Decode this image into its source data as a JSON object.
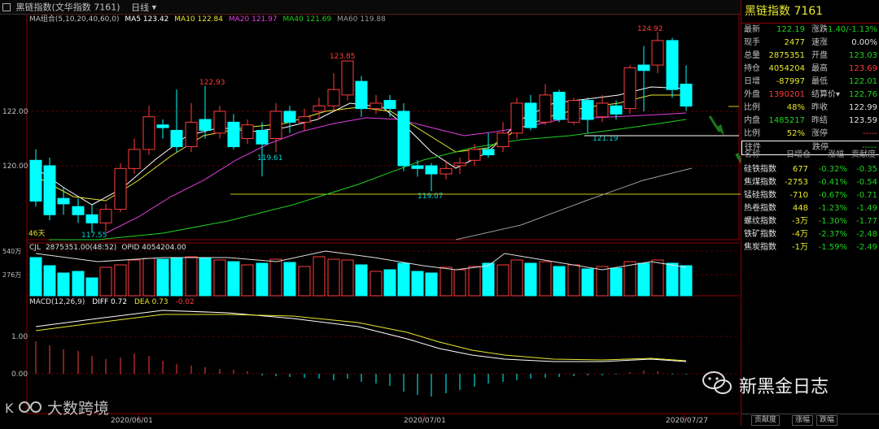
{
  "topbar": {
    "title": "黑链指数(文华指数 7161)",
    "period": "日线"
  },
  "main_legend": {
    "label": "MA组合(5,10,20,40,60,0)",
    "ma5": "MA5 123.42",
    "ma10": "MA10 122.84",
    "ma20": "MA20 121.97",
    "ma40": "MA40 121.69",
    "ma60": "MA60 119.88"
  },
  "axis_labels": {
    "p122": "122.00",
    "p120": "120.00",
    "v540": "540万",
    "v276": "276万",
    "m100": "1.00",
    "m000": "0.00",
    "m_neg": "-",
    "days": "46天"
  },
  "price_labels": {
    "high1": "122.93",
    "high2": "123.85",
    "high3": "124.92",
    "low1": "117.55",
    "low2": "119.61",
    "low3": "119.07",
    "low4": "121.19"
  },
  "volume_legend": {
    "cjl": "CJL",
    "value": "2875351.00(48:52)",
    "opid": "OPID 4054204.00"
  },
  "macd_legend": {
    "label": "MACD(12,26,9)",
    "diff": "DIFF 0.72",
    "dea": "DEA 0.73",
    "macd": "-0.02"
  },
  "dates": {
    "d1": "2020/06/01",
    "d2": "2020/07/01",
    "d3": "2020/07/27"
  },
  "panel": {
    "title": "黑链指数  7161",
    "rows": [
      {
        "l1": "最新",
        "v1": "122.19",
        "c1": "green",
        "l2": "涨跌",
        "v2": "-1.40/-1.13%",
        "c2": "green"
      },
      {
        "l1": "现手",
        "v1": "2477",
        "c1": "yel",
        "l2": "速涨",
        "v2": "0.00%",
        "c2": "wht"
      },
      {
        "l1": "总量",
        "v1": "2875351",
        "c1": "yel",
        "l2": "开盘",
        "v2": "123.03",
        "c2": "green"
      },
      {
        "l1": "持仓",
        "v1": "4054204",
        "c1": "yel",
        "l2": "最高",
        "v2": "123.69",
        "c2": "red"
      },
      {
        "l1": "日增",
        "v1": "-87997",
        "c1": "yel",
        "l2": "最低",
        "v2": "122.01",
        "c2": "green"
      },
      {
        "l1": "外盘",
        "v1": "1390201",
        "c1": "red",
        "l2": "结算价▾",
        "v2": "122.76",
        "c2": "green"
      },
      {
        "l1": "比例",
        "v1": "48%",
        "c1": "yel",
        "l2": "昨收",
        "v2": "122.99",
        "c2": "wht"
      },
      {
        "l1": "内盘",
        "v1": "1485217",
        "c1": "green",
        "l2": "昨结",
        "v2": "123.59",
        "c2": "wht"
      },
      {
        "l1": "比例",
        "v1": "52%",
        "c1": "yel",
        "l2": "涨停",
        "v2": "-----",
        "c2": "red"
      },
      {
        "l1": "往件",
        "v1": "",
        "c1": "yel",
        "l2": "跌停",
        "v2": "-----",
        "c2": "green"
      }
    ],
    "sector_head": {
      "name": "名称",
      "pos": "日增仓",
      "chg": "涨幅",
      "contrib": "贡献度"
    },
    "sectors": [
      {
        "name": "硅铁指数",
        "pos": "677",
        "chg": "-0.32%",
        "contrib": "-0.35"
      },
      {
        "name": "焦煤指数",
        "pos": "-2753",
        "chg": "-0.41%",
        "contrib": "-0.54"
      },
      {
        "name": "锰硅指数",
        "pos": "-710",
        "chg": "-0.67%",
        "contrib": "-0.71"
      },
      {
        "name": "热卷指数",
        "pos": "448",
        "chg": "-1.23%",
        "contrib": "-1.49"
      },
      {
        "name": "螺纹指数",
        "pos": "-3万",
        "chg": "-1.30%",
        "contrib": "-1.77"
      },
      {
        "name": "铁矿指数",
        "pos": "-4万",
        "chg": "-2.37%",
        "contrib": "-2.48"
      },
      {
        "name": "焦炭指数",
        "pos": "-1万",
        "chg": "-1.59%",
        "contrib": "-2.49"
      }
    ],
    "tabs": [
      "贡献度",
      "涨幅",
      "跌幅"
    ]
  },
  "watermark": {
    "text": "新黑金日志"
  },
  "logo": {
    "text": "大数跨境"
  }
}
